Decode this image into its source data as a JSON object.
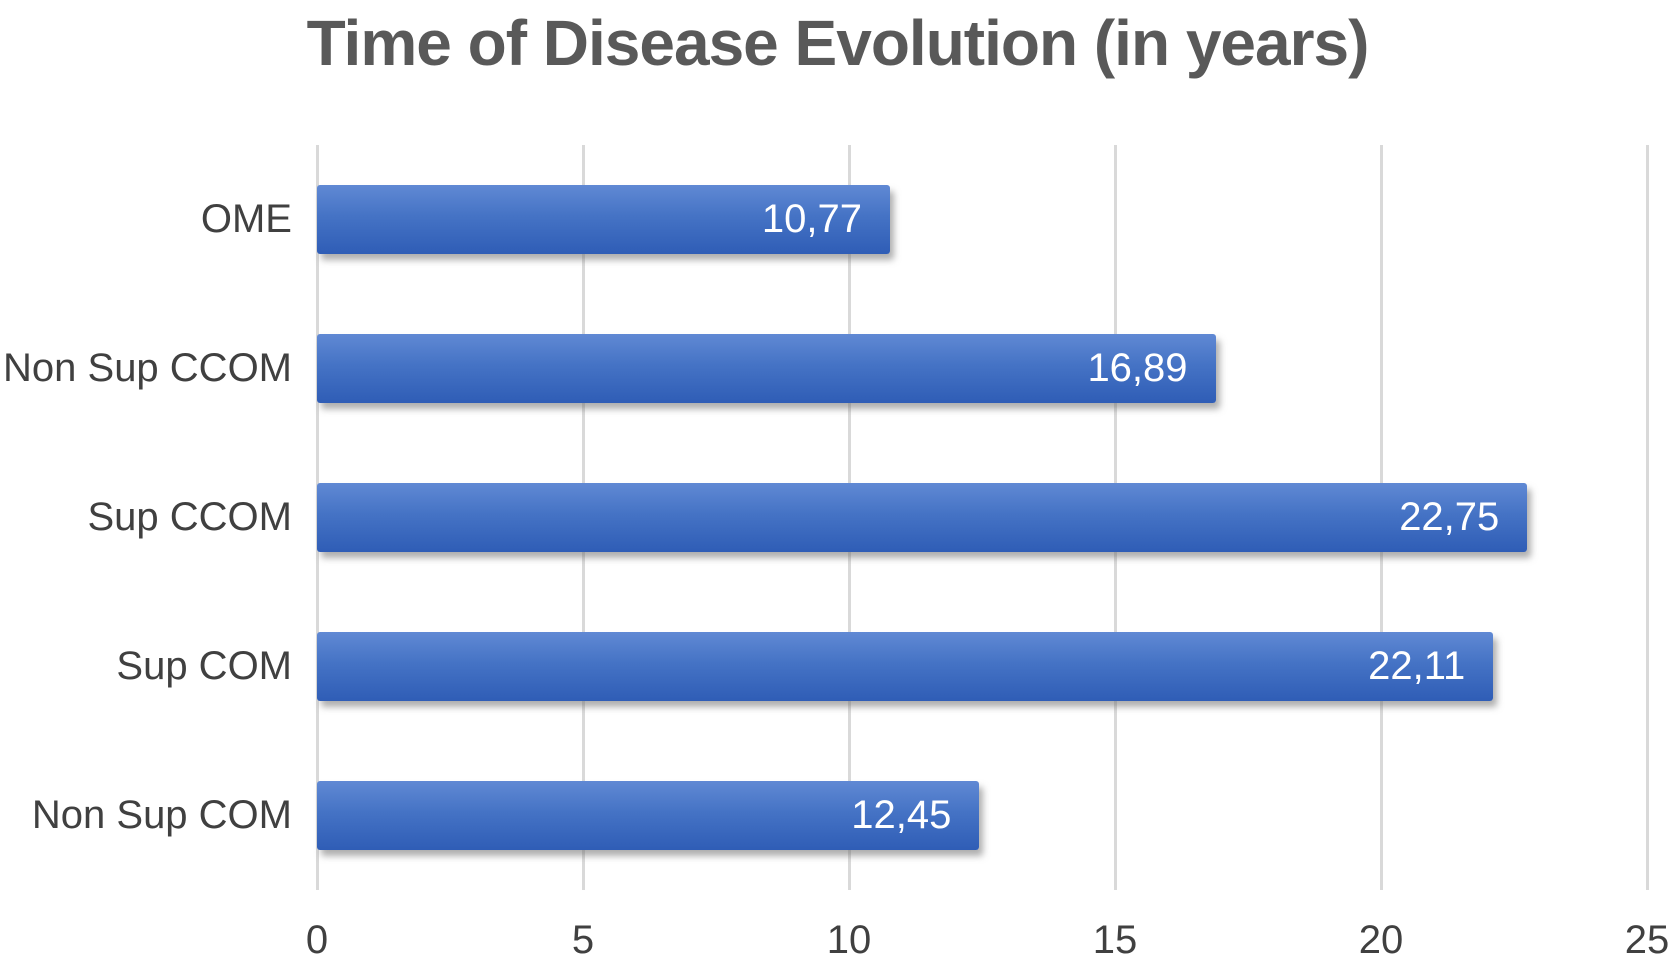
{
  "chart_data": {
    "type": "bar",
    "orientation": "horizontal",
    "title": "Time of Disease Evolution (in years)",
    "categories": [
      "OME",
      "Non Sup CCOM",
      "Sup CCOM",
      "Sup COM",
      "Non Sup COM"
    ],
    "values": [
      10.77,
      16.89,
      22.75,
      22.11,
      12.45
    ],
    "value_labels": [
      "10,77",
      "16,89",
      "22,75",
      "22,11",
      "12,45"
    ],
    "xlabel": "",
    "ylabel": "",
    "xlim": [
      0,
      25
    ],
    "x_ticks": [
      0,
      5,
      10,
      15,
      20,
      25
    ],
    "grid": true,
    "legend": false,
    "colors": {
      "bar_fill": "#4472C4",
      "bar_gradient_top": "#6089d4",
      "bar_gradient_bottom": "#2f5db6",
      "gridline": "#d9d9d9",
      "title_text": "#595959",
      "axis_text": "#404040",
      "data_label_text": "#ffffff",
      "background": "#ffffff"
    }
  }
}
